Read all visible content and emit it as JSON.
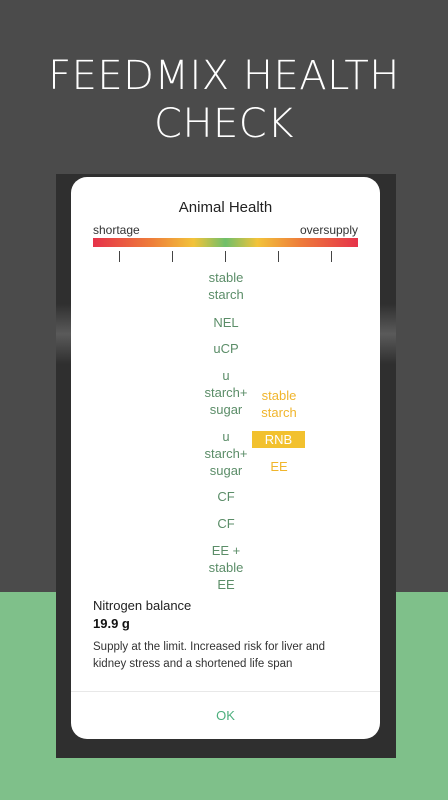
{
  "promo": {
    "title_line1": "FEEDMIX HEALTH",
    "title_line2": "CHECK"
  },
  "dialog": {
    "title": "Animal Health",
    "scale": {
      "left_label": "shortage",
      "right_label": "oversupply"
    },
    "left_column": [
      {
        "line1": "stable",
        "line2": "starch",
        "line3": ""
      },
      {
        "line1": "NEL",
        "line2": "",
        "line3": ""
      },
      {
        "line1": "uCP",
        "line2": "",
        "line3": ""
      },
      {
        "line1": "u",
        "line2": "starch+",
        "line3": "sugar"
      },
      {
        "line1": "u",
        "line2": "starch+",
        "line3": "sugar"
      },
      {
        "line1": "CF",
        "line2": "",
        "line3": ""
      },
      {
        "line1": "CF",
        "line2": "",
        "line3": ""
      },
      {
        "line1": "EE +",
        "line2": "stable",
        "line3": "EE"
      }
    ],
    "right_column": {
      "item1_line1": "stable",
      "item1_line2": "starch",
      "badge": "RNB",
      "item3": "EE"
    },
    "nitrogen": {
      "label": "Nitrogen balance",
      "value": "19.9 g",
      "description": "Supply at the limit. Increased risk for liver and kidney stress and a shortened life span"
    },
    "ok_label": "OK"
  },
  "colors": {
    "top_background": "#4b4b4b",
    "bottom_background": "#7fc08a",
    "green_text": "#5b8d68",
    "yellow_text": "#f0b52c",
    "badge_background": "#f2c12e",
    "ok_text": "#4caf7d"
  }
}
